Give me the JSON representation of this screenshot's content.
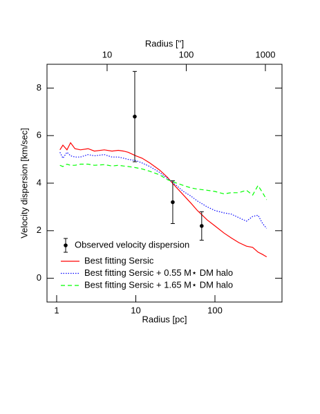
{
  "chart_data": {
    "type": "line",
    "xlabel": "Radius [pc]",
    "ylabel": "Velocity dispersion [km/sec]",
    "x2label": "Radius ['']",
    "xscale": "log",
    "xlim": [
      0.755,
      703
    ],
    "xticks": [
      1,
      10,
      100
    ],
    "x2scale": "log",
    "x2lim": [
      1.74,
      1620
    ],
    "x2ticks": [
      10,
      100,
      1000
    ],
    "ylim": [
      -1,
      9
    ],
    "yticks": [
      0,
      2,
      4,
      6,
      8
    ],
    "legend": "lower left",
    "observed": {
      "name": "Observed velocity dispersion",
      "color": "#000000",
      "x": [
        9.7,
        29.3,
        68
      ],
      "values": [
        6.8,
        3.2,
        2.2
      ],
      "errors": [
        1.9,
        0.9,
        0.6
      ]
    },
    "x": [
      1.1,
      1.2,
      1.35,
      1.5,
      1.7,
      2,
      2.5,
      3,
      4,
      5,
      6,
      7,
      8,
      10,
      12,
      15,
      20,
      25,
      30,
      40,
      50,
      60,
      80,
      100,
      130,
      160,
      200,
      250,
      300,
      350,
      400,
      450
    ],
    "series": [
      {
        "name": "Best fitting Sersic",
        "color": "#ff0000",
        "style": "solid",
        "values": [
          5.4,
          5.6,
          5.4,
          5.7,
          5.45,
          5.4,
          5.45,
          5.35,
          5.4,
          5.35,
          5.38,
          5.35,
          5.3,
          5.15,
          5.05,
          4.85,
          4.55,
          4.25,
          3.95,
          3.5,
          3.15,
          2.85,
          2.45,
          2.2,
          1.9,
          1.7,
          1.5,
          1.35,
          1.3,
          1.1,
          1.0,
          0.9
        ]
      },
      {
        "name": "Best fitting Sersic + 0.55 M⋆ DM halo",
        "color": "#0000ff",
        "style": "dotted",
        "values": [
          5.3,
          5.05,
          5.3,
          5.15,
          5.1,
          5.1,
          5.2,
          5.15,
          5.2,
          5.1,
          5.1,
          5.05,
          5.0,
          4.95,
          4.85,
          4.7,
          4.45,
          4.2,
          4.0,
          3.65,
          3.45,
          3.25,
          3.0,
          2.85,
          2.75,
          2.7,
          2.55,
          2.4,
          2.6,
          2.65,
          2.3,
          2.1
        ]
      },
      {
        "name": "Best fitting Sersic + 1.65 M⋆ DM halo",
        "color": "#00ff00",
        "style": "dashed",
        "values": [
          4.75,
          4.7,
          4.8,
          4.75,
          4.75,
          4.8,
          4.8,
          4.75,
          4.78,
          4.72,
          4.75,
          4.72,
          4.7,
          4.65,
          4.6,
          4.5,
          4.35,
          4.15,
          4.05,
          3.9,
          3.8,
          3.75,
          3.7,
          3.65,
          3.55,
          3.6,
          3.6,
          3.7,
          3.5,
          3.9,
          3.6,
          3.3
        ]
      }
    ]
  }
}
